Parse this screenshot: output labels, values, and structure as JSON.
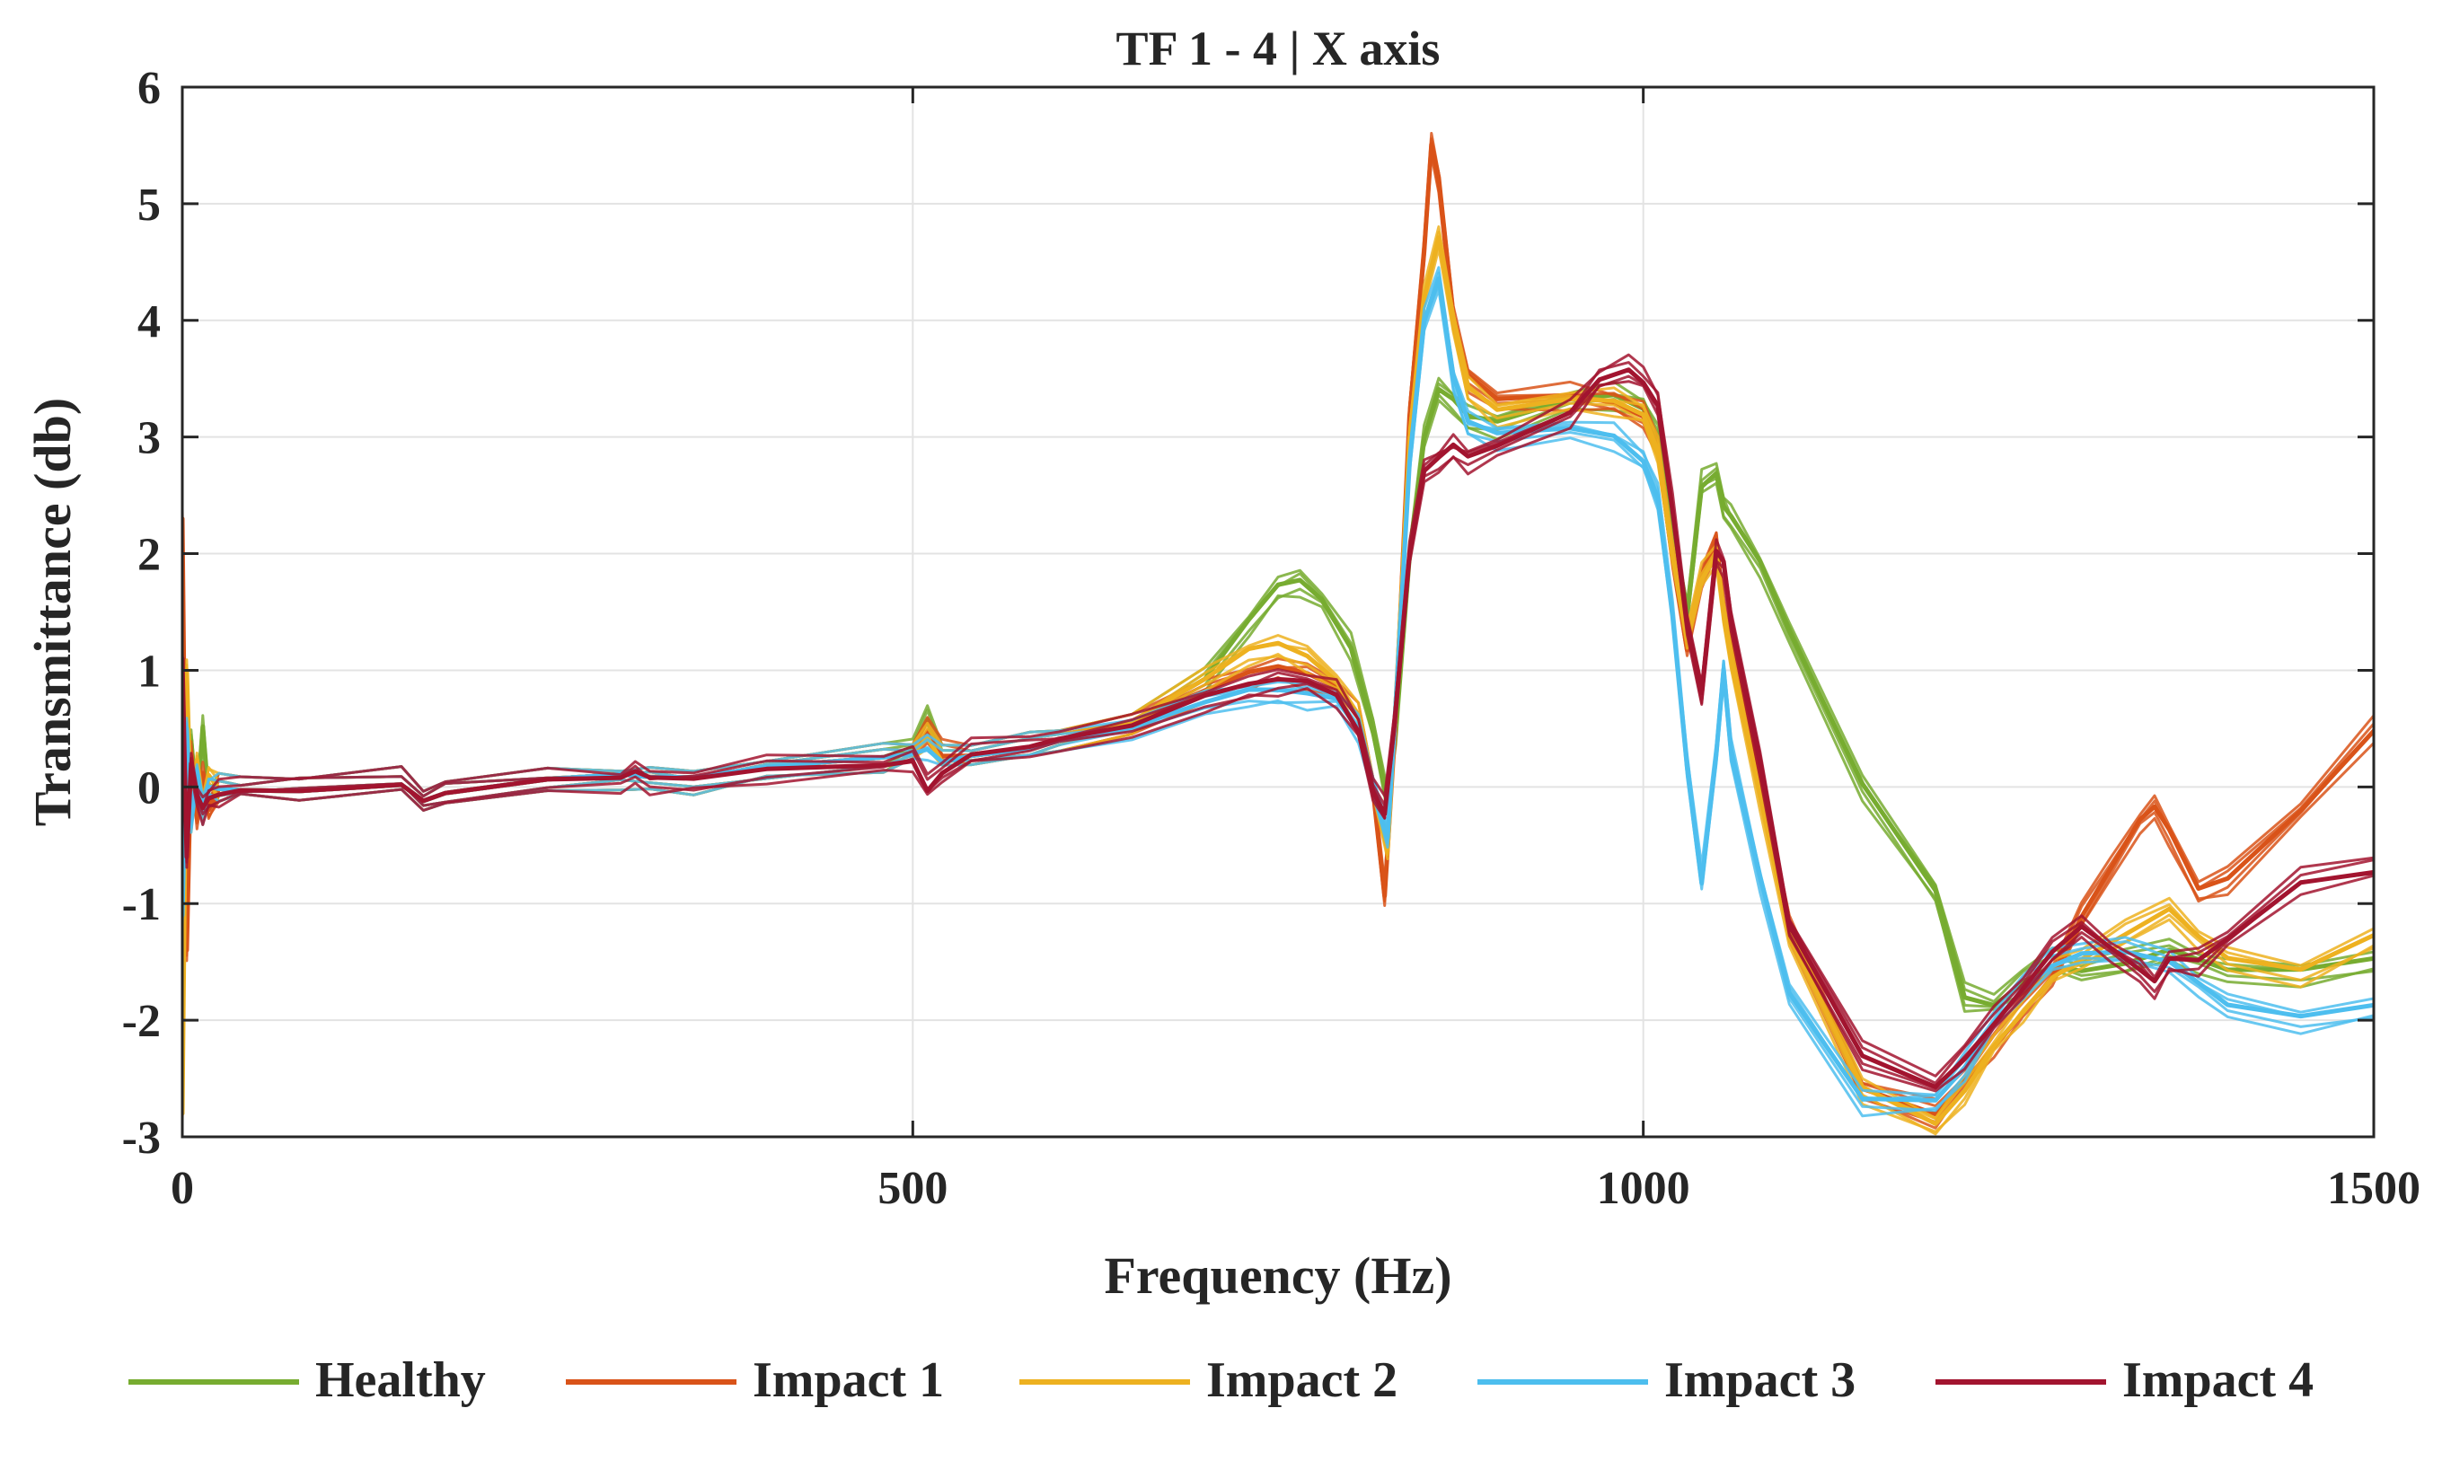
{
  "chart_data": {
    "type": "line",
    "title": "TF 1 - 4 | X axis",
    "xlabel": "Frequency (Hz)",
    "ylabel": "Transmittance (db)",
    "xlim": [
      0,
      1500
    ],
    "ylim": [
      -3,
      6
    ],
    "xticks": [
      0,
      500,
      1000,
      1500
    ],
    "yticks": [
      -3,
      -2,
      -1,
      0,
      1,
      2,
      3,
      4,
      5,
      6
    ],
    "grid": true,
    "legend_position": "bottom",
    "series": [
      {
        "name": "Healthy",
        "color": "#77AC30",
        "x": [
          0,
          3,
          6,
          10,
          14,
          18,
          25,
          40,
          80,
          150,
          165,
          180,
          250,
          300,
          320,
          350,
          400,
          480,
          500,
          510,
          520,
          540,
          580,
          600,
          650,
          700,
          730,
          750,
          765,
          780,
          800,
          815,
          825,
          830,
          840,
          850,
          860,
          870,
          880,
          900,
          950,
          980,
          1000,
          1010,
          1020,
          1030,
          1040,
          1050,
          1055,
          1060,
          1080,
          1100,
          1150,
          1200,
          1220,
          1240,
          1260,
          1280,
          1300,
          1330,
          1360,
          1380,
          1400,
          1450,
          1500
        ],
        "y": [
          0.5,
          -0.6,
          0.4,
          -0.2,
          0.5,
          -0.1,
          0.0,
          0.0,
          0.0,
          0.05,
          -0.1,
          -0.05,
          0.05,
          0.08,
          0.05,
          0.05,
          0.15,
          0.25,
          0.35,
          0.6,
          0.25,
          0.3,
          0.35,
          0.4,
          0.55,
          0.9,
          1.4,
          1.7,
          1.75,
          1.6,
          1.2,
          0.5,
          -0.1,
          0.4,
          2.0,
          3.0,
          3.4,
          3.3,
          3.15,
          3.1,
          3.3,
          3.35,
          3.25,
          3.0,
          2.2,
          1.5,
          2.6,
          2.7,
          2.4,
          2.3,
          1.9,
          1.3,
          0.0,
          -0.9,
          -1.8,
          -1.85,
          -1.65,
          -1.5,
          -1.55,
          -1.5,
          -1.4,
          -1.5,
          -1.6,
          -1.6,
          -1.5
        ]
      },
      {
        "name": "Impact 1",
        "color": "#D95319",
        "x": [
          0,
          3,
          6,
          10,
          14,
          18,
          25,
          40,
          80,
          150,
          165,
          180,
          250,
          300,
          320,
          350,
          400,
          480,
          500,
          510,
          520,
          540,
          580,
          600,
          650,
          700,
          730,
          750,
          770,
          790,
          805,
          815,
          823,
          830,
          840,
          850,
          855,
          860,
          870,
          880,
          900,
          950,
          980,
          1000,
          1010,
          1020,
          1030,
          1040,
          1050,
          1055,
          1060,
          1080,
          1100,
          1150,
          1200,
          1220,
          1240,
          1260,
          1280,
          1300,
          1320,
          1340,
          1350,
          1360,
          1380,
          1400,
          1450,
          1500
        ],
        "y": [
          2.3,
          -1.4,
          0.3,
          -0.3,
          0.1,
          -0.2,
          0.0,
          0.0,
          0.0,
          0.05,
          -0.1,
          -0.05,
          0.05,
          0.08,
          0.05,
          0.05,
          0.15,
          0.25,
          0.3,
          0.5,
          0.3,
          0.3,
          0.35,
          0.4,
          0.55,
          0.8,
          0.95,
          1.0,
          0.95,
          0.85,
          0.6,
          0.0,
          -0.9,
          0.5,
          3.2,
          4.6,
          5.5,
          5.2,
          4.0,
          3.5,
          3.3,
          3.35,
          3.3,
          3.2,
          2.9,
          2.0,
          1.2,
          1.8,
          2.1,
          1.5,
          1.2,
          0.0,
          -1.2,
          -2.6,
          -2.8,
          -2.5,
          -2.2,
          -1.9,
          -1.6,
          -1.1,
          -0.7,
          -0.3,
          -0.2,
          -0.4,
          -0.9,
          -0.8,
          -0.2,
          0.5
        ]
      },
      {
        "name": "Impact 2",
        "color": "#EDB120",
        "x": [
          0,
          3,
          6,
          10,
          14,
          18,
          25,
          40,
          80,
          150,
          165,
          180,
          250,
          300,
          320,
          350,
          400,
          480,
          500,
          510,
          520,
          540,
          580,
          600,
          650,
          700,
          730,
          750,
          770,
          790,
          805,
          815,
          825,
          830,
          840,
          850,
          860,
          870,
          880,
          900,
          950,
          980,
          1000,
          1010,
          1020,
          1030,
          1040,
          1050,
          1055,
          1060,
          1080,
          1100,
          1150,
          1200,
          1220,
          1240,
          1260,
          1280,
          1300,
          1330,
          1360,
          1380,
          1400,
          1450,
          1500
        ],
        "y": [
          -2.8,
          1.0,
          -0.3,
          0.2,
          -0.2,
          0.1,
          0.0,
          0.0,
          0.0,
          0.05,
          -0.1,
          -0.05,
          0.05,
          0.08,
          0.05,
          0.05,
          0.15,
          0.25,
          0.3,
          0.45,
          0.25,
          0.3,
          0.35,
          0.4,
          0.55,
          0.9,
          1.15,
          1.2,
          1.1,
          0.9,
          0.6,
          0.0,
          -0.5,
          0.6,
          3.0,
          4.2,
          4.7,
          4.0,
          3.4,
          3.2,
          3.3,
          3.3,
          3.2,
          2.9,
          2.0,
          1.3,
          1.8,
          2.0,
          1.5,
          1.1,
          -0.1,
          -1.3,
          -2.6,
          -2.9,
          -2.6,
          -2.2,
          -1.9,
          -1.6,
          -1.45,
          -1.25,
          -1.05,
          -1.3,
          -1.5,
          -1.6,
          -1.3
        ]
      },
      {
        "name": "Impact 3",
        "color": "#4DBEEE",
        "x": [
          0,
          3,
          6,
          10,
          14,
          18,
          25,
          40,
          80,
          150,
          165,
          180,
          250,
          300,
          320,
          350,
          400,
          480,
          500,
          510,
          520,
          540,
          580,
          600,
          650,
          700,
          730,
          750,
          770,
          790,
          805,
          815,
          825,
          830,
          840,
          850,
          860,
          870,
          880,
          900,
          950,
          980,
          1000,
          1010,
          1020,
          1030,
          1040,
          1050,
          1055,
          1060,
          1080,
          1100,
          1150,
          1200,
          1220,
          1240,
          1260,
          1280,
          1300,
          1330,
          1360,
          1380,
          1400,
          1450,
          1500
        ],
        "y": [
          -1.1,
          0.5,
          -0.3,
          0.1,
          -0.2,
          0.0,
          0.0,
          0.0,
          0.0,
          0.05,
          -0.1,
          -0.05,
          0.05,
          0.08,
          0.05,
          0.05,
          0.15,
          0.25,
          0.3,
          0.35,
          0.25,
          0.3,
          0.35,
          0.4,
          0.5,
          0.7,
          0.8,
          0.8,
          0.78,
          0.75,
          0.5,
          0.0,
          -0.4,
          0.6,
          2.8,
          4.0,
          4.35,
          3.5,
          3.1,
          3.0,
          3.05,
          3.0,
          2.8,
          2.5,
          1.5,
          0.2,
          -0.8,
          0.3,
          1.0,
          0.3,
          -0.8,
          -1.8,
          -2.7,
          -2.7,
          -2.4,
          -2.0,
          -1.7,
          -1.5,
          -1.4,
          -1.4,
          -1.5,
          -1.7,
          -1.9,
          -2.0,
          -1.9
        ]
      },
      {
        "name": "Impact 4",
        "color": "#A2142F",
        "x": [
          0,
          3,
          6,
          10,
          14,
          18,
          25,
          40,
          80,
          150,
          165,
          180,
          250,
          300,
          310,
          320,
          350,
          400,
          480,
          500,
          510,
          520,
          540,
          580,
          600,
          650,
          700,
          730,
          750,
          770,
          790,
          805,
          815,
          823,
          830,
          840,
          850,
          860,
          870,
          880,
          900,
          950,
          970,
          990,
          1000,
          1010,
          1020,
          1030,
          1040,
          1050,
          1055,
          1060,
          1080,
          1100,
          1150,
          1200,
          1220,
          1240,
          1260,
          1280,
          1300,
          1320,
          1340,
          1350,
          1360,
          1380,
          1400,
          1450,
          1500
        ],
        "y": [
          1.1,
          -0.6,
          0.2,
          -0.1,
          -0.2,
          -0.1,
          -0.05,
          0.0,
          0.0,
          0.05,
          -0.1,
          -0.05,
          0.05,
          0.05,
          0.1,
          0.05,
          0.05,
          0.15,
          0.2,
          0.25,
          0.0,
          0.15,
          0.3,
          0.35,
          0.4,
          0.5,
          0.75,
          0.85,
          0.9,
          0.9,
          0.8,
          0.5,
          0.0,
          -0.2,
          0.6,
          2.0,
          2.7,
          2.8,
          2.9,
          2.8,
          2.9,
          3.2,
          3.5,
          3.6,
          3.5,
          3.3,
          2.4,
          1.4,
          0.8,
          2.0,
          1.9,
          1.4,
          0.2,
          -1.2,
          -2.3,
          -2.55,
          -2.3,
          -2.0,
          -1.7,
          -1.4,
          -1.2,
          -1.4,
          -1.6,
          -1.7,
          -1.5,
          -1.5,
          -1.3,
          -0.8,
          -0.7
        ]
      }
    ]
  }
}
